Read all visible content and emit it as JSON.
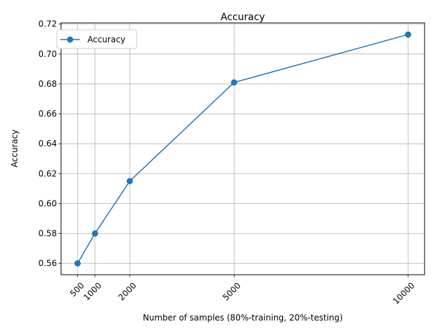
{
  "chart_data": {
    "type": "line",
    "title": "Accuracy",
    "xlabel": "Number of samples (80%-training, 20%-testing)",
    "ylabel": "Accuracy",
    "x": [
      500,
      1000,
      2000,
      5000,
      10000
    ],
    "xticks": [
      "500",
      "1000",
      "2000",
      "5000",
      "10000"
    ],
    "xtick_rotation": 45,
    "yticks": [
      "0.56",
      "0.58",
      "0.60",
      "0.62",
      "0.64",
      "0.66",
      "0.68",
      "0.70",
      "0.72"
    ],
    "ylim": [
      0.5524,
      0.7208
    ],
    "xlim": [
      25,
      10475
    ],
    "grid": true,
    "legend_position": "upper-left",
    "series": [
      {
        "name": "Accuracy",
        "color": "#1f77b4",
        "marker": "circle",
        "values": [
          0.56,
          0.58,
          0.615,
          0.681,
          0.713
        ]
      }
    ]
  }
}
